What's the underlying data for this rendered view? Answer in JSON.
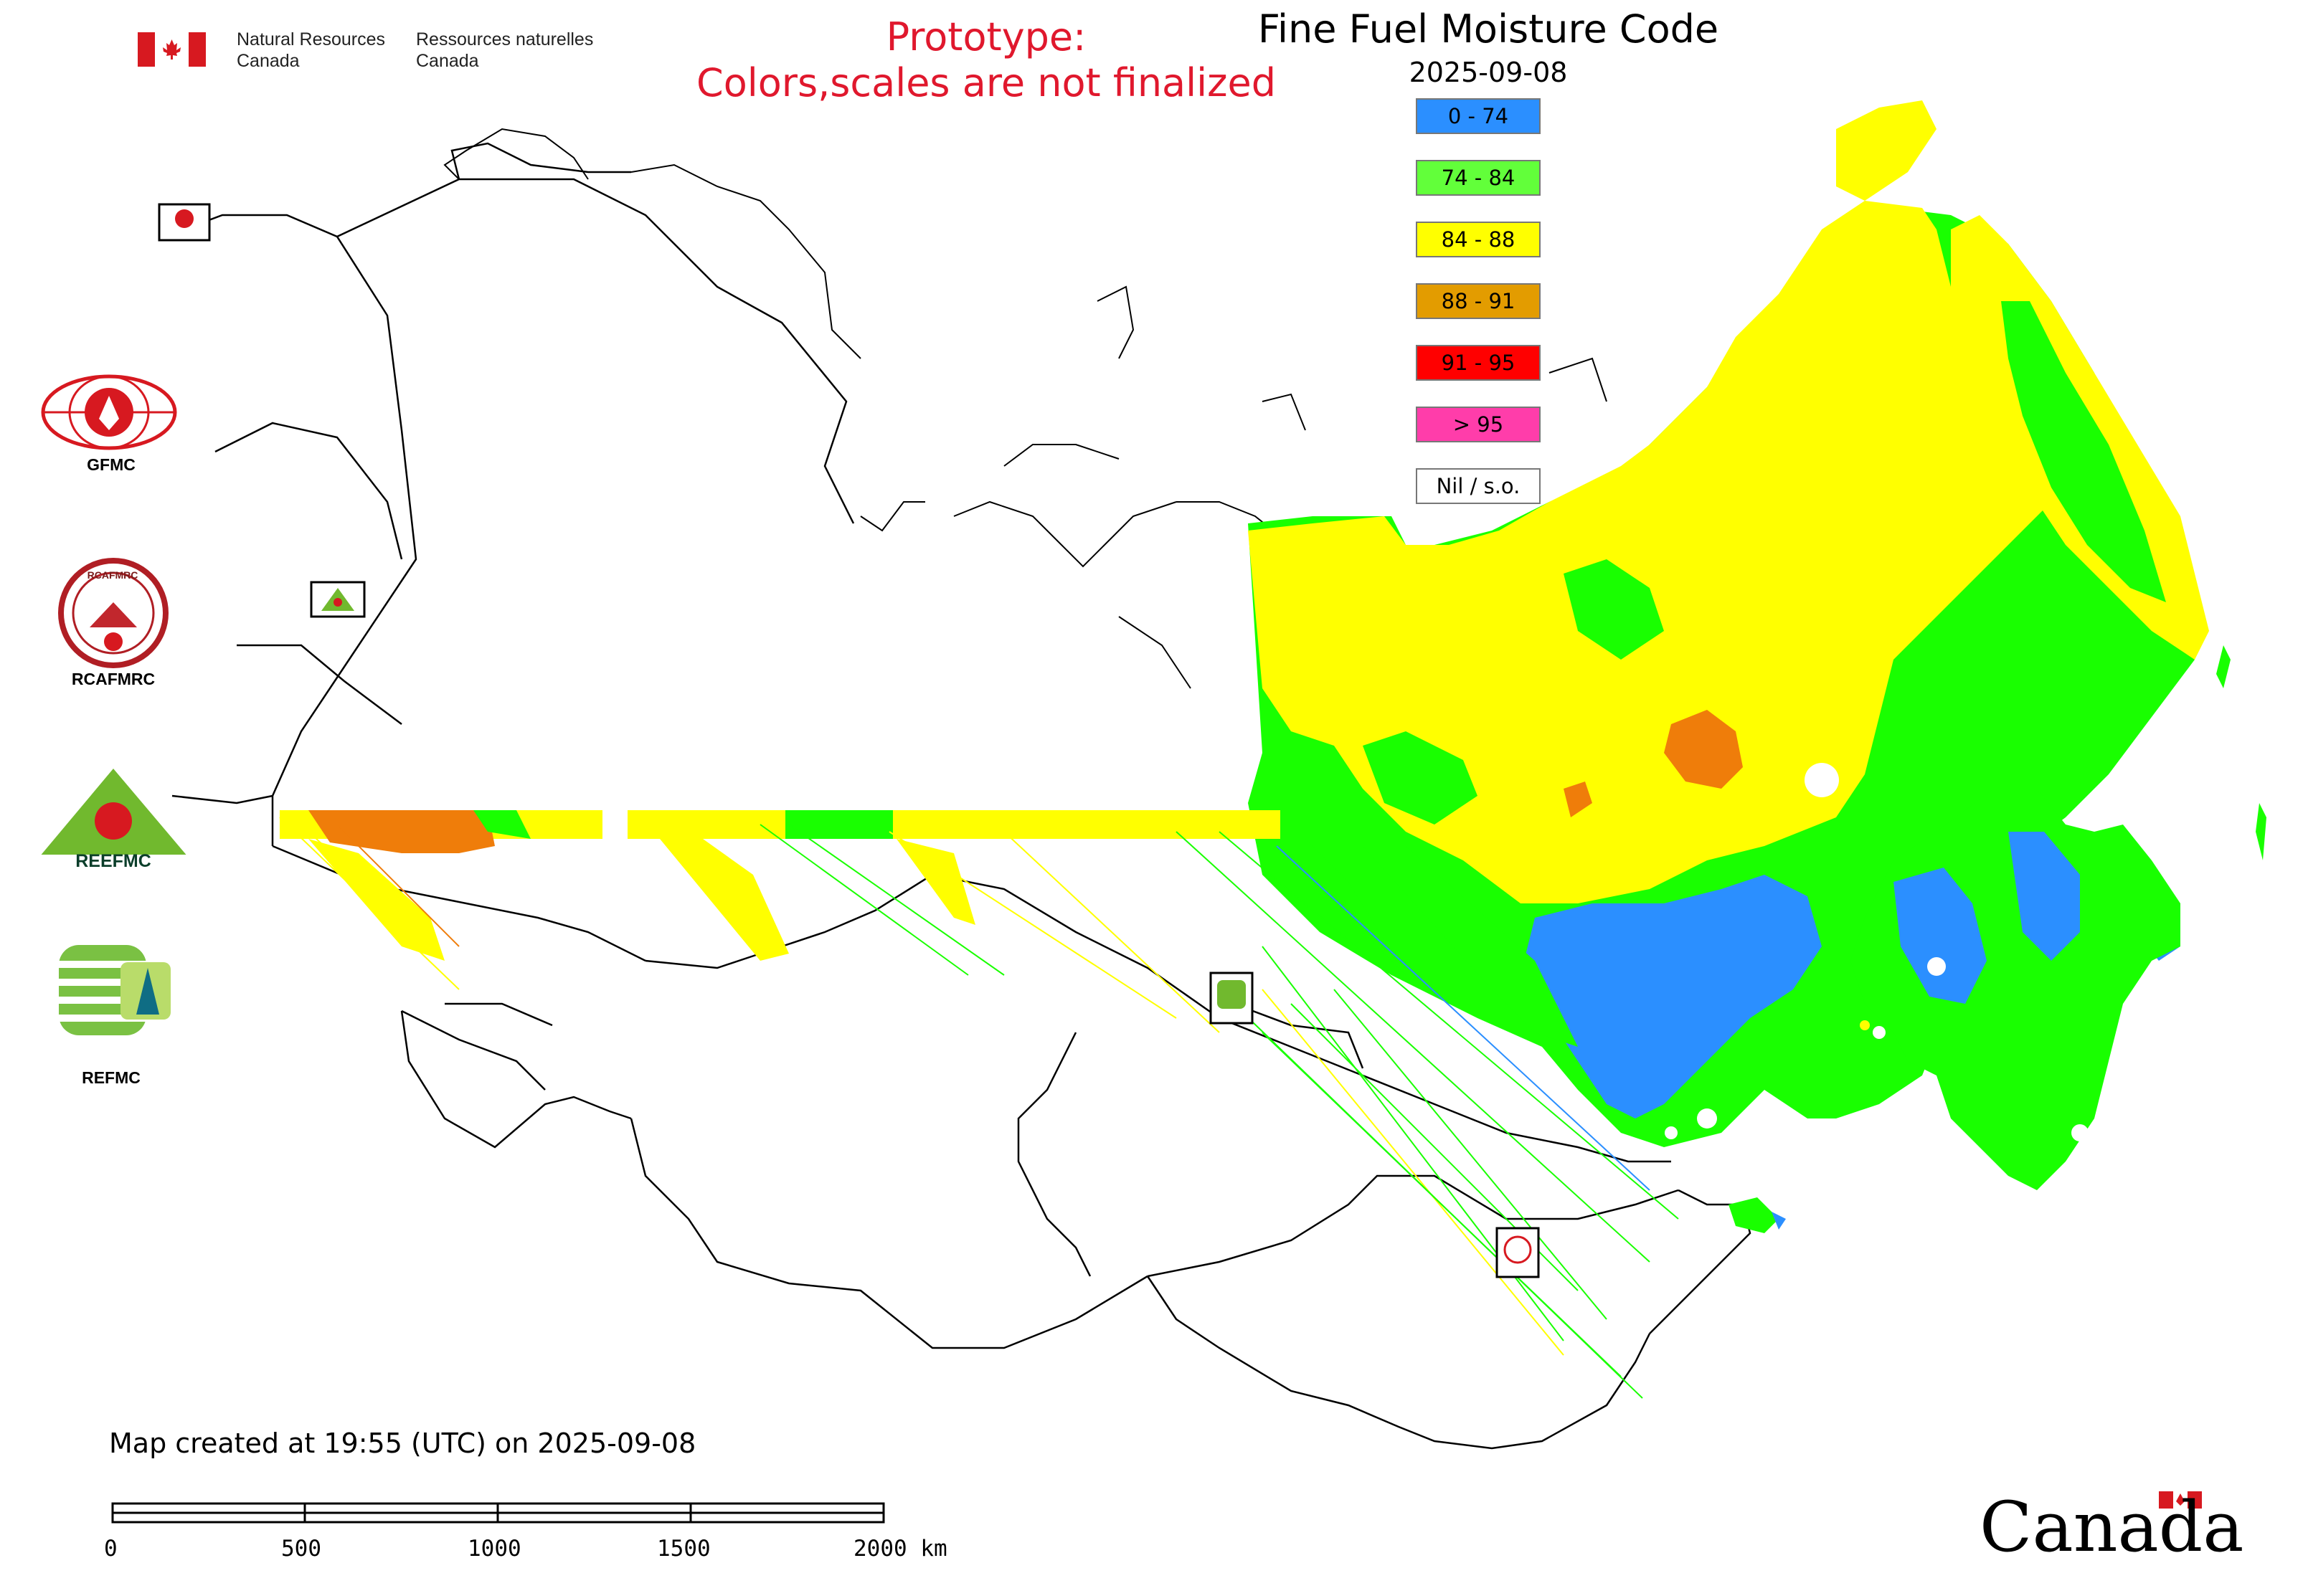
{
  "header": {
    "agency_en": [
      "Natural Resources",
      "Canada"
    ],
    "agency_fr": [
      "Ressources naturelles",
      "Canada"
    ],
    "prototype": [
      "Prototype:",
      "Colors,scales are not finalized"
    ],
    "title": "Fine Fuel Moisture Code",
    "date": "2025-09-08"
  },
  "legend": [
    {
      "label": "0 - 74",
      "color": "#2b8fff"
    },
    {
      "label": "74 - 84",
      "color": "#62ff3a"
    },
    {
      "label": "84 - 88",
      "color": "#ffff00"
    },
    {
      "label": "88 - 91",
      "color": "#e39c00"
    },
    {
      "label": "91 - 95",
      "color": "#ff0000"
    },
    {
      "label": "> 95",
      "color": "#ff3daa"
    },
    {
      "label": "Nil / s.o.",
      "color": "#ffffff"
    }
  ],
  "logos": {
    "gfmc": "GFMC",
    "rcafmrc": "RCAFMRC",
    "rcafmrc_emblem": "RCAFMRC",
    "reefmc": "REEFMC",
    "refmc": "REFMC"
  },
  "footer": {
    "created": "Map created at 19:55 (UTC) on 2025-09-08",
    "scale_labels": [
      "0",
      "500",
      "1000",
      "1500",
      "2000 km"
    ],
    "wordmark": "Canada"
  },
  "colors": {
    "prototype_text": "#e0182d",
    "canada_red": "#d71920",
    "border_line": "#000000"
  }
}
